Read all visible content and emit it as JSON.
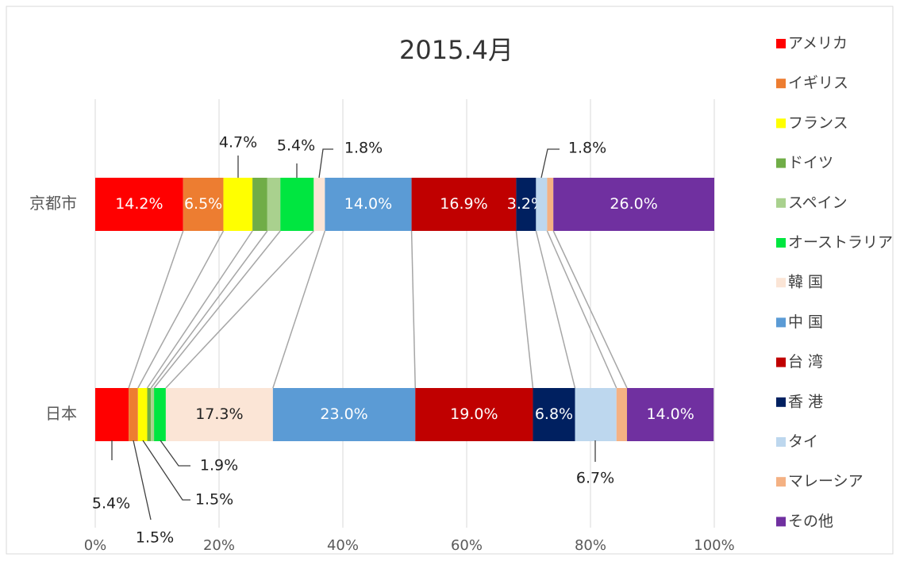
{
  "chart_data": {
    "type": "stacked_bar_100",
    "title": "2015.4月",
    "categories": [
      "京都市",
      "日本"
    ],
    "xlim": [
      0,
      100
    ],
    "xticks": [
      {
        "value": 0,
        "label": "0%"
      },
      {
        "value": 20,
        "label": "20%"
      },
      {
        "value": 40,
        "label": "40%"
      },
      {
        "value": 60,
        "label": "60%"
      },
      {
        "value": 80,
        "label": "80%"
      },
      {
        "value": 100,
        "label": "100%"
      }
    ],
    "grid": true,
    "legend": "right",
    "series": [
      {
        "name": "アメリカ",
        "color": "#ff0000",
        "values": [
          14.2,
          5.4
        ],
        "value_labels": [
          "14.2%",
          "5.4%"
        ]
      },
      {
        "name": "イギリス",
        "color": "#ed7d31",
        "values": [
          6.5,
          1.5
        ],
        "value_labels": [
          "6.5%",
          "1.5%"
        ]
      },
      {
        "name": "フランス",
        "color": "#ffff00",
        "values": [
          4.7,
          1.5
        ],
        "value_labels": [
          "4.7%",
          "1.5%"
        ]
      },
      {
        "name": "ドイツ",
        "color": "#70ad47",
        "values": [
          2.4,
          0.6
        ],
        "value_labels": [
          null,
          null
        ]
      },
      {
        "name": "スペイン",
        "color": "#a9d18e",
        "values": [
          2.1,
          0.5
        ],
        "value_labels": [
          null,
          null
        ]
      },
      {
        "name": "オーストラリア",
        "color": "#00e640",
        "values": [
          5.4,
          1.9
        ],
        "value_labels": [
          "5.4%",
          "1.9%"
        ]
      },
      {
        "name": "韓 国",
        "color": "#fbe5d6",
        "values": [
          1.8,
          17.3
        ],
        "value_labels": [
          "1.8%",
          "17.3%"
        ]
      },
      {
        "name": "中 国",
        "color": "#5b9bd5",
        "values": [
          14.0,
          23.0
        ],
        "value_labels": [
          "14.0%",
          "23.0%"
        ]
      },
      {
        "name": "台 湾",
        "color": "#c00000",
        "values": [
          16.9,
          19.0
        ],
        "value_labels": [
          "16.9%",
          "19.0%"
        ]
      },
      {
        "name": "香 港",
        "color": "#002060",
        "values": [
          3.2,
          6.8
        ],
        "value_labels": [
          "3.2%",
          "6.8%"
        ]
      },
      {
        "name": "タイ",
        "color": "#bdd7ee",
        "values": [
          1.8,
          6.7
        ],
        "value_labels": [
          "1.8%",
          "6.7%"
        ]
      },
      {
        "name": "マレーシア",
        "color": "#f4b183",
        "values": [
          1.0,
          1.7
        ],
        "value_labels": [
          null,
          null
        ]
      },
      {
        "name": "その他",
        "color": "#7030a0",
        "values": [
          26.0,
          14.0
        ],
        "value_labels": [
          "26.0%",
          "14.0%"
        ]
      }
    ]
  }
}
